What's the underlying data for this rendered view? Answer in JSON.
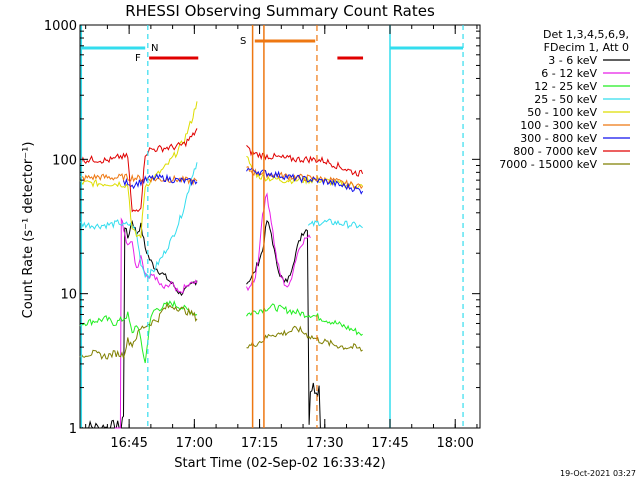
{
  "chart_data": {
    "type": "line",
    "title": "RHESSI Observing Summary Count Rates",
    "xlabel": "Start Time (02-Sep-02 16:33:42)",
    "ylabel": "Count Rate (s⁻¹ detector⁻¹)",
    "y_scale": "log",
    "ylim": [
      1,
      1000
    ],
    "xlim_minutes_after_start": [
      0,
      92
    ],
    "x_ticks": [
      {
        "label": "16:45",
        "t": 11.3
      },
      {
        "label": "17:00",
        "t": 26.3
      },
      {
        "label": "17:15",
        "t": 41.3
      },
      {
        "label": "17:30",
        "t": 56.3
      },
      {
        "label": "17:45",
        "t": 71.3
      },
      {
        "label": "18:00",
        "t": 86.3
      }
    ],
    "y_ticks": [
      {
        "label": "1",
        "v": 1
      },
      {
        "label": "10",
        "v": 10
      },
      {
        "label": "100",
        "v": 100
      },
      {
        "label": "1000",
        "v": 1000
      }
    ],
    "legend_header": [
      "Det 1,3,4,5,6,9,",
      "FDecim 1, Att 0"
    ],
    "legend_placement": "right, outside plot",
    "flag_labels": [
      {
        "text": "N",
        "color": "#33ddee"
      },
      {
        "text": "F",
        "color": "#e00000"
      },
      {
        "text": "S",
        "color": "#ee7711"
      }
    ],
    "series": [
      {
        "name": "3 - 6 keV",
        "color": "#000000",
        "points": [
          [
            0,
            1
          ],
          [
            9,
            1
          ],
          [
            9.5,
            1
          ],
          [
            10,
            1.3
          ],
          [
            10.3,
            32
          ],
          [
            11,
            26
          ],
          [
            12,
            35
          ],
          [
            13,
            28
          ],
          [
            14,
            32
          ],
          [
            15,
            22
          ],
          [
            16,
            18
          ],
          [
            17,
            16
          ],
          [
            18,
            15
          ],
          [
            19,
            14
          ],
          [
            20,
            13
          ],
          [
            21,
            12
          ],
          [
            22,
            11
          ],
          [
            23,
            10
          ],
          [
            24,
            10.5
          ],
          [
            25,
            11
          ],
          [
            26,
            12
          ],
          [
            26.9,
            12.5
          ]
        ],
        "points_b": [
          [
            38.3,
            12
          ],
          [
            40,
            14
          ],
          [
            42,
            21
          ],
          [
            43,
            35
          ],
          [
            44,
            28
          ],
          [
            45,
            18
          ],
          [
            46,
            14
          ],
          [
            47,
            12
          ],
          [
            48,
            13
          ],
          [
            49,
            17
          ],
          [
            50,
            22
          ],
          [
            51,
            28
          ],
          [
            52,
            30
          ],
          [
            52.3,
            31
          ],
          [
            52.7,
            1.1
          ],
          [
            53,
            2
          ],
          [
            55,
            2
          ],
          [
            55.3,
            1
          ]
        ]
      },
      {
        "name": "6 - 12 keV",
        "color": "#e81ee8",
        "points": [
          [
            8,
            1
          ],
          [
            9.3,
            1
          ],
          [
            9.5,
            38
          ],
          [
            10,
            30
          ],
          [
            11,
            22
          ],
          [
            12,
            25
          ],
          [
            13,
            15
          ],
          [
            14,
            20
          ],
          [
            15,
            14
          ],
          [
            16,
            13
          ],
          [
            17,
            14
          ],
          [
            18,
            12
          ],
          [
            19,
            11
          ],
          [
            20,
            11
          ],
          [
            21,
            12
          ],
          [
            22,
            10.5
          ],
          [
            23,
            10
          ],
          [
            24,
            11
          ],
          [
            25,
            11.5
          ],
          [
            26,
            12
          ],
          [
            26.9,
            12
          ]
        ],
        "points_b": [
          [
            38.3,
            11
          ],
          [
            40,
            12
          ],
          [
            41,
            18
          ],
          [
            42,
            40
          ],
          [
            43,
            55
          ],
          [
            44,
            35
          ],
          [
            45,
            20
          ],
          [
            46,
            14
          ],
          [
            47,
            12
          ],
          [
            48,
            11
          ],
          [
            49,
            15
          ],
          [
            50,
            20
          ],
          [
            51,
            24
          ],
          [
            52,
            26
          ],
          [
            53,
            26
          ]
        ]
      },
      {
        "name": "12 - 25 keV",
        "color": "#22ee22",
        "points": [
          [
            0,
            6
          ],
          [
            6,
            6.5
          ],
          [
            8,
            6
          ],
          [
            10,
            6.5
          ],
          [
            11,
            7
          ],
          [
            12,
            5
          ],
          [
            13,
            6
          ],
          [
            14,
            4.5
          ],
          [
            15,
            3
          ],
          [
            16,
            6
          ],
          [
            17,
            7.5
          ],
          [
            19,
            8
          ],
          [
            21,
            8.5
          ],
          [
            23,
            8
          ],
          [
            25,
            7.5
          ],
          [
            26.9,
            7
          ]
        ],
        "points_b": [
          [
            38.3,
            7
          ],
          [
            41,
            7.5
          ],
          [
            44,
            8
          ],
          [
            48,
            7.5
          ],
          [
            52,
            7
          ],
          [
            53,
            7
          ],
          [
            56,
            6.5
          ],
          [
            59,
            6
          ],
          [
            62,
            5.5
          ],
          [
            65,
            5
          ]
        ]
      },
      {
        "name": "25 - 50 keV",
        "color": "#33ddee",
        "points": [
          [
            0,
            33
          ],
          [
            4,
            32
          ],
          [
            8,
            33
          ],
          [
            9,
            34
          ],
          [
            10,
            32
          ],
          [
            11,
            33
          ],
          [
            12,
            32
          ],
          [
            13,
            28
          ],
          [
            14,
            17
          ],
          [
            15,
            14
          ],
          [
            16,
            14
          ],
          [
            17,
            15
          ],
          [
            18,
            17
          ],
          [
            19,
            19
          ],
          [
            20,
            22
          ],
          [
            21,
            25
          ],
          [
            22,
            30
          ],
          [
            23,
            36
          ],
          [
            24,
            45
          ],
          [
            25,
            60
          ],
          [
            26,
            80
          ],
          [
            26.9,
            95
          ]
        ],
        "points_b": [
          [
            52.5,
            32
          ],
          [
            55,
            34
          ],
          [
            58,
            34
          ],
          [
            61,
            33
          ],
          [
            64,
            32
          ],
          [
            65,
            31
          ]
        ]
      },
      {
        "name": "50 - 100 keV",
        "color": "#dddd00",
        "points": [
          [
            0,
            67
          ],
          [
            5,
            66
          ],
          [
            9,
            66
          ],
          [
            10,
            65
          ],
          [
            11,
            64
          ],
          [
            12,
            30
          ],
          [
            13,
            27
          ],
          [
            14,
            27
          ],
          [
            15,
            64
          ],
          [
            16,
            68
          ],
          [
            18,
            78
          ],
          [
            20,
            90
          ],
          [
            22,
            110
          ],
          [
            24,
            140
          ],
          [
            25,
            170
          ],
          [
            26,
            210
          ],
          [
            26.9,
            270
          ]
        ],
        "points_b": [
          [
            38.3,
            110
          ],
          [
            39,
            90
          ],
          [
            41,
            75
          ],
          [
            44,
            72
          ],
          [
            47,
            70
          ],
          [
            50,
            70
          ],
          [
            53,
            70
          ],
          [
            56,
            70
          ],
          [
            59,
            66
          ],
          [
            62,
            65
          ],
          [
            65,
            63
          ]
        ]
      },
      {
        "name": "100 - 300 keV",
        "color": "#ee7711",
        "points": [
          [
            0,
            72
          ],
          [
            4,
            74
          ],
          [
            8,
            73
          ],
          [
            10,
            74
          ],
          [
            11,
            73
          ],
          [
            12,
            73
          ],
          [
            14,
            72
          ],
          [
            16,
            72
          ],
          [
            18,
            71
          ],
          [
            20,
            71
          ],
          [
            22,
            71
          ],
          [
            24,
            70
          ],
          [
            26,
            69
          ],
          [
            26.9,
            69
          ]
        ],
        "points_b": [
          [
            38.3,
            85
          ],
          [
            40,
            80
          ],
          [
            43,
            78
          ],
          [
            46,
            76
          ],
          [
            49,
            74
          ],
          [
            52,
            73
          ],
          [
            55,
            71
          ],
          [
            58,
            70
          ],
          [
            60,
            67
          ],
          [
            62,
            65
          ],
          [
            65,
            63
          ]
        ]
      },
      {
        "name": "300 - 800 keV",
        "color": "#1111ee",
        "points": [
          [
            10,
            66
          ],
          [
            11,
            68
          ],
          [
            12,
            64
          ],
          [
            13,
            66
          ],
          [
            14,
            68
          ],
          [
            16,
            72
          ],
          [
            18,
            73
          ],
          [
            20,
            72
          ],
          [
            22,
            70
          ],
          [
            24,
            69
          ],
          [
            26,
            68
          ],
          [
            26.9,
            68
          ]
        ],
        "points_b": [
          [
            38.3,
            85
          ],
          [
            42,
            80
          ],
          [
            46,
            76
          ],
          [
            50,
            72
          ],
          [
            54,
            70
          ],
          [
            57,
            68
          ],
          [
            60,
            64
          ],
          [
            62,
            62
          ],
          [
            65,
            58
          ]
        ]
      },
      {
        "name": "800 - 7000 keV",
        "color": "#e00000",
        "points": [
          [
            0,
            98
          ],
          [
            3,
            100
          ],
          [
            6,
            98
          ],
          [
            8,
            100
          ],
          [
            9,
            105
          ],
          [
            10,
            104
          ],
          [
            11,
            105
          ],
          [
            12,
            40
          ],
          [
            13,
            42
          ],
          [
            14,
            45
          ],
          [
            15,
            110
          ],
          [
            16,
            118
          ],
          [
            18,
            120
          ],
          [
            20,
            122
          ],
          [
            22,
            124
          ],
          [
            24,
            130
          ],
          [
            25,
            140
          ],
          [
            26,
            150
          ],
          [
            26.9,
            170
          ]
        ],
        "points_b": [
          [
            38.3,
            125
          ],
          [
            39,
            115
          ],
          [
            41,
            108
          ],
          [
            44,
            105
          ],
          [
            47,
            102
          ],
          [
            50,
            100
          ],
          [
            53,
            100
          ],
          [
            56,
            98
          ],
          [
            59,
            90
          ],
          [
            61,
            85
          ],
          [
            63,
            80
          ],
          [
            65,
            78
          ]
        ]
      },
      {
        "name": "7000 - 15000 keV",
        "color": "#7f7f00",
        "points": [
          [
            0,
            3.5
          ],
          [
            3,
            3.6
          ],
          [
            6,
            3.4
          ],
          [
            8,
            3.6
          ],
          [
            10,
            3.5
          ],
          [
            11,
            4.5
          ],
          [
            12,
            4.2
          ],
          [
            13,
            4.8
          ],
          [
            14,
            5.5
          ],
          [
            16,
            6
          ],
          [
            18,
            6.5
          ],
          [
            19,
            7.5
          ],
          [
            20,
            8
          ],
          [
            22,
            8
          ],
          [
            24,
            7.5
          ],
          [
            26,
            7
          ],
          [
            26.9,
            6.5
          ]
        ],
        "points_b": [
          [
            38.3,
            4
          ],
          [
            40,
            4.2
          ],
          [
            42,
            4.5
          ],
          [
            44,
            5
          ],
          [
            46,
            5
          ],
          [
            48,
            5.2
          ],
          [
            50,
            5.5
          ],
          [
            52,
            5
          ],
          [
            53,
            4.8
          ],
          [
            55,
            4.5
          ],
          [
            58,
            4.2
          ],
          [
            61,
            4
          ],
          [
            63,
            4
          ],
          [
            65,
            3.8
          ]
        ]
      }
    ]
  },
  "timestamp": "19-Oct-2021 03:27"
}
